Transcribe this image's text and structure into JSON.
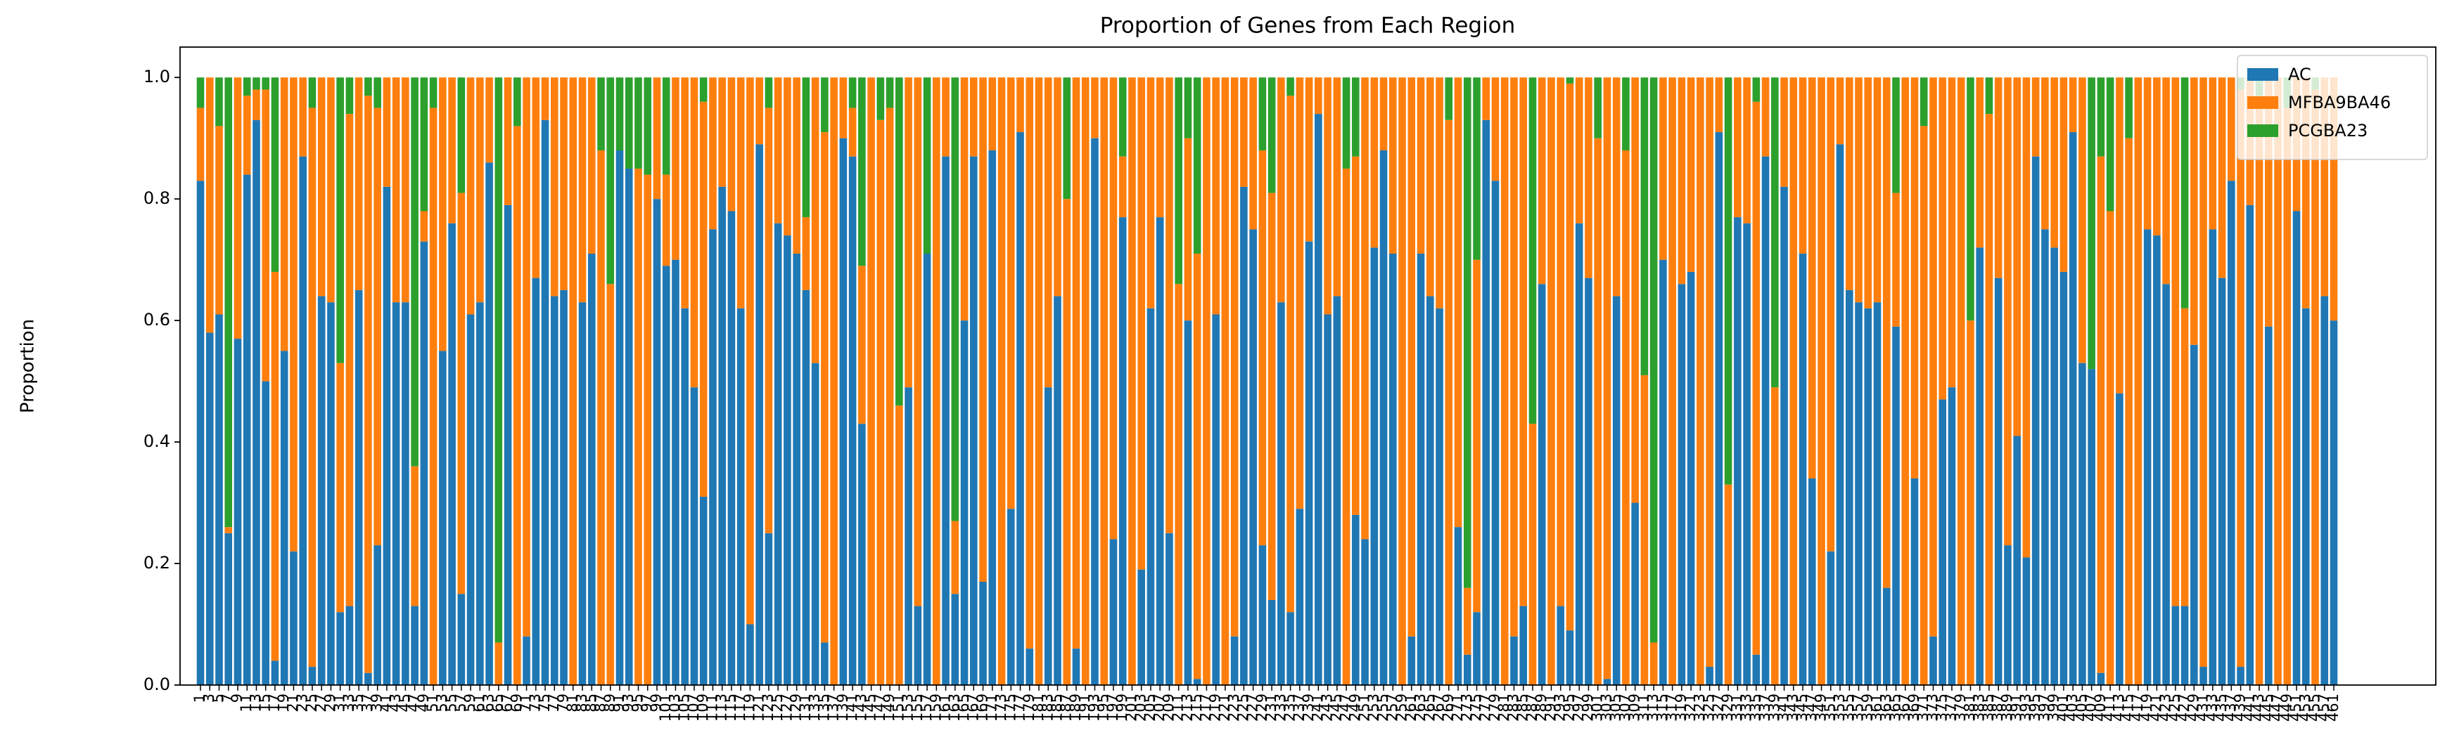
{
  "chart_data": {
    "type": "stacked_bar",
    "title": "Proportion of Genes from Each Region",
    "ylabel": "Proportion",
    "categories": [
      1,
      3,
      5,
      7,
      9,
      11,
      13,
      15,
      17,
      19,
      21,
      23,
      25,
      27,
      29,
      31,
      33,
      35,
      37,
      39,
      41,
      43,
      45,
      47,
      49,
      51,
      53,
      55,
      57,
      59,
      61,
      63,
      65,
      67,
      69,
      71,
      73,
      75,
      77,
      79,
      81,
      83,
      85,
      87,
      89,
      91,
      93,
      95,
      97,
      99,
      101,
      103,
      105,
      107,
      109,
      111,
      113,
      115,
      117,
      119,
      121,
      123,
      125,
      127,
      129,
      131,
      133,
      135,
      137,
      139,
      141,
      143,
      145,
      147,
      149,
      151,
      153,
      155,
      157,
      159,
      161,
      163,
      165,
      167,
      169,
      171,
      173,
      175,
      177,
      179,
      181,
      183,
      185,
      187,
      189,
      191,
      193,
      195,
      197,
      199,
      201,
      203,
      205,
      207,
      209,
      211,
      213,
      215,
      217,
      219,
      221,
      223,
      225,
      227,
      229,
      231,
      233,
      235,
      237,
      239,
      241,
      243,
      245,
      247,
      249,
      251,
      253,
      255,
      257,
      259,
      261,
      263,
      265,
      267,
      269,
      271,
      273,
      275,
      277,
      279,
      281,
      283,
      285,
      287,
      289,
      291,
      293,
      295,
      297,
      299,
      301,
      303,
      305,
      307,
      309,
      311,
      313,
      315,
      317,
      319,
      321,
      323,
      325,
      327,
      329,
      331,
      333,
      335,
      337,
      339,
      341,
      343,
      345,
      347,
      349,
      351,
      353,
      355,
      357,
      359,
      361,
      363,
      365,
      367,
      369,
      371,
      373,
      375,
      377,
      379,
      381,
      383,
      385,
      387,
      389,
      391,
      393,
      395,
      397,
      399,
      401,
      403,
      405,
      407,
      409,
      411,
      413,
      415,
      417,
      419,
      421,
      423,
      425,
      427,
      429,
      431,
      433,
      435,
      437,
      439,
      441,
      443,
      445,
      447,
      449,
      451,
      453,
      455,
      457,
      461
    ],
    "series": [
      {
        "name": "AC",
        "color": "#1f77b4",
        "values": [
          0.83,
          0.58,
          0.61,
          0.25,
          0.57,
          0.84,
          0.93,
          0.5,
          0.04,
          0.55,
          0.22,
          0.87,
          0.03,
          0.64,
          0.63,
          0.12,
          0.13,
          0.65,
          0.02,
          0.23,
          0.82,
          0.63,
          0.63,
          0.13,
          0.73,
          0.0,
          0.55,
          0.76,
          0.15,
          0.61,
          0.63,
          0.86,
          0.0,
          0.79,
          0.0,
          0.08,
          0.67,
          0.93,
          0.64,
          0.65,
          0.0,
          0.63,
          0.71,
          0.0,
          0.0,
          0.88,
          0.85,
          0.0,
          0.0,
          0.8,
          0.69,
          0.7,
          0.62,
          0.49,
          0.31,
          0.75,
          0.82,
          0.78,
          0.62,
          0.1,
          0.89,
          0.25,
          0.76,
          0.74,
          0.71,
          0.65,
          0.53,
          0.07,
          0.0,
          0.9,
          0.87,
          0.43,
          0.0,
          0.0,
          0.0,
          0.0,
          0.49,
          0.13,
          0.71,
          0.0,
          0.87,
          0.15,
          0.6,
          0.87,
          0.17,
          0.88,
          0.0,
          0.29,
          0.91,
          0.06,
          0.0,
          0.49,
          0.64,
          0.0,
          0.06,
          0.0,
          0.9,
          0.0,
          0.24,
          0.77,
          0.0,
          0.19,
          0.62,
          0.77,
          0.25,
          0.0,
          0.6,
          0.01,
          0.0,
          0.61,
          0.0,
          0.08,
          0.82,
          0.75,
          0.23,
          0.14,
          0.63,
          0.12,
          0.29,
          0.73,
          0.94,
          0.61,
          0.64,
          0.0,
          0.28,
          0.24,
          0.72,
          0.88,
          0.71,
          0.0,
          0.08,
          0.71,
          0.64,
          0.62,
          0.0,
          0.26,
          0.05,
          0.12,
          0.93,
          0.83,
          0.0,
          0.08,
          0.13,
          0.0,
          0.66,
          0.0,
          0.13,
          0.09,
          0.76,
          0.67,
          0.0,
          0.01,
          0.64,
          0.0,
          0.3,
          0.0,
          0.0,
          0.7,
          0.0,
          0.66,
          0.68,
          0.0,
          0.03,
          0.91,
          0.0,
          0.77,
          0.76,
          0.05,
          0.87,
          0.0,
          0.82,
          0.0,
          0.71,
          0.34,
          0.0,
          0.22,
          0.89,
          0.65,
          0.63,
          0.62,
          0.63,
          0.16,
          0.59,
          0.0,
          0.34,
          0.0,
          0.08,
          0.47,
          0.49,
          0.0,
          0.0,
          0.72,
          0.0,
          0.67,
          0.23,
          0.41,
          0.21,
          0.87,
          0.75,
          0.72,
          0.68,
          0.91,
          0.53,
          0.52,
          0.02,
          0.0,
          0.48,
          0.0,
          0.0,
          0.75,
          0.74,
          0.66,
          0.13,
          0.13,
          0.56,
          0.03,
          0.75,
          0.67,
          0.83,
          0.03,
          0.79,
          0.0,
          0.59,
          0.0,
          0.0,
          0.78,
          0.62,
          0.0,
          0.64,
          0.6
        ]
      },
      {
        "name": "MFBA9BA46",
        "color": "#ff7f0e",
        "values": [
          0.12,
          0.42,
          0.31,
          0.01,
          0.43,
          0.13,
          0.05,
          0.48,
          0.64,
          0.45,
          0.78,
          0.13,
          0.92,
          0.36,
          0.37,
          0.41,
          0.81,
          0.35,
          0.95,
          0.72,
          0.18,
          0.37,
          0.37,
          0.23,
          0.05,
          0.95,
          0.45,
          0.24,
          0.66,
          0.39,
          0.37,
          0.14,
          0.07,
          0.21,
          0.92,
          0.92,
          0.33,
          0.07,
          0.36,
          0.35,
          1,
          0.37,
          0.29,
          0.88,
          0.66,
          0,
          0,
          0.85,
          0.84,
          0.2,
          0.15,
          0.3,
          0.38,
          0.51,
          0.65,
          0.25,
          0.18,
          0.22,
          0.38,
          0.9,
          0.11,
          0.7,
          0.24,
          0.26,
          0.29,
          0.12,
          0.47,
          0.84,
          1,
          0.1,
          0.08,
          0.26,
          1,
          0.93,
          0.95,
          0.46,
          0.51,
          0.87,
          0,
          1,
          0.13,
          0.12,
          0.4,
          0.13,
          0.83,
          0.12,
          1,
          0.71,
          0.09,
          0.94,
          1,
          0.51,
          0.36,
          0.8,
          0.94,
          1,
          0.1,
          1,
          0.76,
          0.1,
          1,
          0.81,
          0.38,
          0.23,
          0.75,
          0.66,
          0.3,
          0.7,
          1,
          0.39,
          1,
          0.92,
          0.18,
          0.25,
          0.65,
          0.67,
          0.37,
          0.85,
          0.71,
          0.27,
          0.06,
          0.39,
          0.36,
          0.85,
          0.59,
          0.76,
          0.28,
          0.12,
          0.29,
          1,
          0.92,
          0.29,
          0.36,
          0.38,
          0.93,
          0.74,
          0.11,
          0.58,
          0.07,
          0.17,
          1,
          0.92,
          0.87,
          0.43,
          0.34,
          1,
          0.87,
          0.9,
          0.24,
          0.33,
          0.9,
          0.99,
          0.36,
          0.88,
          0.7,
          0.51,
          0.07,
          0.3,
          1,
          0.34,
          0.32,
          1,
          0.97,
          0.09,
          0.33,
          0.23,
          0.24,
          0.91,
          0.13,
          0.49,
          0.18,
          1,
          0.29,
          0.66,
          1,
          0.78,
          0.11,
          0.35,
          0.37,
          0.38,
          0.37,
          0.84,
          0.22,
          1,
          0.66,
          0.92,
          0.92,
          0.53,
          0.51,
          1,
          0.6,
          0.28,
          0.94,
          0.33,
          0.77,
          0.59,
          0.79,
          0.13,
          0.25,
          0.28,
          0.32,
          0.09,
          0.47,
          0,
          0.85,
          0.78,
          0.52,
          0.9,
          1,
          0.25,
          0.26,
          0.34,
          0.87,
          0.49,
          0.44,
          0.97,
          0.25,
          0.33,
          0.17,
          0.95,
          0.21,
          0.97,
          0.41,
          1,
          0.95,
          0.22,
          0.38,
          0.98,
          0.36,
          0.4
        ]
      },
      {
        "name": "PCGBA23",
        "color": "#2ca02c",
        "values": [
          0.05,
          0,
          0.08,
          0.74,
          0,
          0.03,
          0.02,
          0.02,
          0.32,
          0,
          0,
          0,
          0.05,
          0,
          0,
          0.47,
          0.06,
          0,
          0.03,
          0.05,
          0,
          0,
          0,
          0.64,
          0.22,
          0.05,
          0,
          0,
          0.19,
          0,
          0,
          0,
          0.93,
          0,
          0.08,
          0,
          0,
          0,
          0,
          0,
          0,
          0,
          0,
          0.12,
          0.34,
          0.12,
          0.15,
          0.15,
          0.16,
          0,
          0.16,
          0,
          0,
          0,
          0.04,
          0,
          0,
          0,
          0,
          0,
          0,
          0.05,
          0,
          0,
          0,
          0.23,
          0,
          0.09,
          0,
          0,
          0.05,
          0.31,
          0,
          0.07,
          0.05,
          0.54,
          0,
          0,
          0.29,
          0,
          0,
          0.73,
          0,
          0,
          0,
          0,
          0,
          0,
          0,
          0,
          0,
          0,
          0,
          0.2,
          0,
          0,
          0,
          0,
          0,
          0.13,
          0,
          0,
          0,
          0,
          0,
          0.34,
          0.1,
          0.29,
          0,
          0,
          0,
          0,
          0,
          0,
          0.12,
          0.19,
          0,
          0.03,
          0,
          0,
          0,
          0,
          0,
          0.15,
          0.13,
          0,
          0,
          0,
          0,
          0,
          0,
          0,
          0,
          0,
          0.07,
          0,
          0.84,
          0.3,
          0,
          0,
          0,
          0,
          0,
          0.57,
          0,
          0,
          0,
          0.01,
          0,
          0,
          0.1,
          0,
          0,
          0.12,
          0,
          0.49,
          0.93,
          0,
          0,
          0,
          0,
          0,
          0,
          0,
          0.67,
          0,
          0,
          0.04,
          0,
          0.51,
          0,
          0,
          0,
          0,
          0,
          0,
          0,
          0,
          0,
          0,
          0,
          0,
          0.19,
          0,
          0,
          0.08,
          0,
          0,
          0,
          0,
          0.4,
          0,
          0.06,
          0,
          0,
          0,
          0,
          0,
          0,
          0,
          0,
          0,
          0,
          0.48,
          0.13,
          0.22,
          0,
          0.1,
          0,
          0,
          0,
          0,
          0,
          0.38,
          0,
          0,
          0,
          0,
          0,
          0.02,
          0,
          0.03,
          0,
          0,
          0.05,
          0,
          0,
          0.02,
          0,
          0
        ]
      }
    ],
    "ylim": [
      0,
      1.05
    ],
    "yticks": [
      {
        "value": 0,
        "label": "0.0"
      },
      {
        "value": 0.2,
        "label": "0.2"
      },
      {
        "value": 0.4,
        "label": "0.4"
      },
      {
        "value": 0.6,
        "label": "0.6"
      },
      {
        "value": 0.8,
        "label": "0.8"
      },
      {
        "value": 1,
        "label": "1.0"
      }
    ],
    "legend": "upper right"
  }
}
